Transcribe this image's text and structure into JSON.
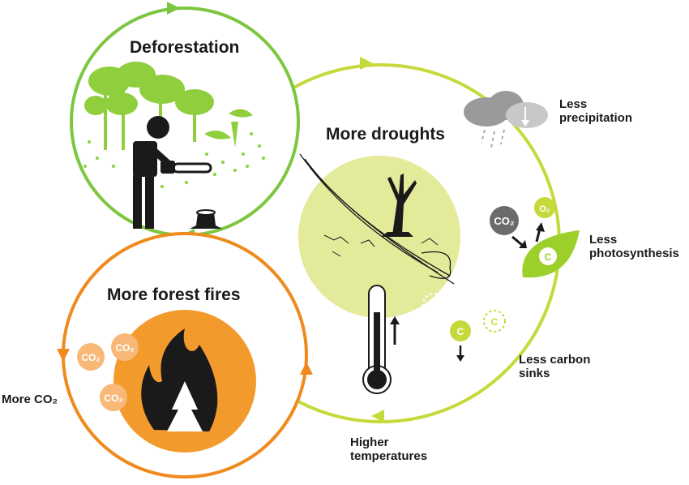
{
  "titles": {
    "deforestation": "Deforestation",
    "droughts": "More droughts",
    "fires": "More forest fires"
  },
  "labels": {
    "precipitation": [
      "Less",
      "precipitation"
    ],
    "photosynthesis": [
      "Less",
      "photosynthesis"
    ],
    "carbon_sinks": [
      "Less carbon",
      "sinks"
    ],
    "temperatures": [
      "Higher",
      "temperatures"
    ],
    "more_co2": "More CO₂"
  },
  "molecules": {
    "co2": "CO₂",
    "o2": "O₂",
    "c": "C"
  },
  "colors": {
    "deforestation_green": "#7dc63f",
    "drought_yellow": "#c6d93b",
    "drought_fill": "#e3ea9a",
    "fire_orange": "#f08a1e",
    "fire_fill": "#f39a2d",
    "co2_bubble": "#f7b878",
    "grey_molecule": "#6b6b6b",
    "dark": "#1a1a1a"
  }
}
